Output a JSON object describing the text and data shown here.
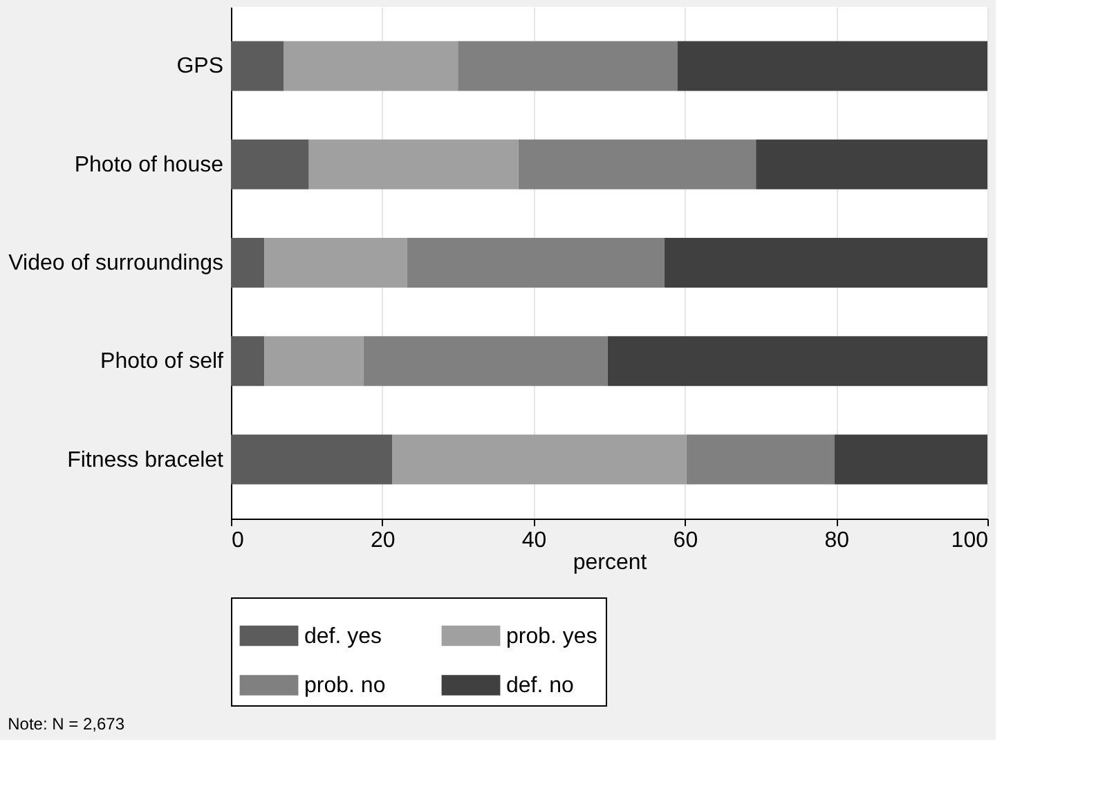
{
  "chart_data": {
    "type": "bar",
    "orientation": "horizontal",
    "stacked": true,
    "categories": [
      "GPS",
      "Photo of house",
      "Video of surroundings",
      "Photo of self",
      "Fitness bracelet"
    ],
    "series": [
      {
        "name": "def. yes",
        "color": "#5c5c5c",
        "values": [
          7,
          10.3,
          4.4,
          4.4,
          21.3
        ]
      },
      {
        "name": "prob. yes",
        "color": "#a0a0a0",
        "values": [
          23,
          27.7,
          18.9,
          13.1,
          38.9
        ]
      },
      {
        "name": "prob. no",
        "color": "#808080",
        "values": [
          29,
          31.4,
          34,
          32.3,
          19.6
        ]
      },
      {
        "name": "def. no",
        "color": "#404040",
        "values": [
          41,
          30.6,
          42.7,
          50.2,
          20.2
        ]
      }
    ],
    "xlabel": "percent",
    "xlim": [
      0,
      100
    ],
    "xticks": [
      0,
      20,
      40,
      60,
      80,
      100
    ],
    "grid": "x",
    "legend": "bottom",
    "annotations": [
      "Note: N = 2,673"
    ]
  }
}
